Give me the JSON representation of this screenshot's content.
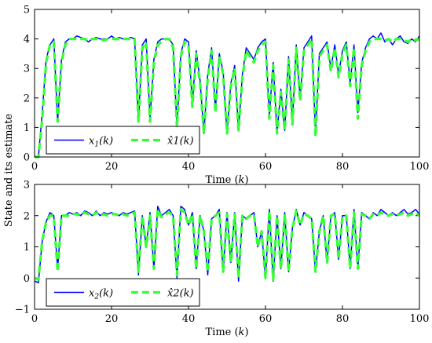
{
  "chart_data": {
    "type": "line",
    "ylabel": "State and its estimate",
    "colors": {
      "true": "#0000ff",
      "estimate": "#33ff33"
    },
    "panels": [
      {
        "xlabel_main": "Time (",
        "xlabel_var": "k",
        "xlabel_end": ")",
        "xlim": [
          0,
          100
        ],
        "ylim": [
          0,
          5
        ],
        "xticks": [
          "0",
          "20",
          "40",
          "60",
          "80",
          "100"
        ],
        "yticks": [
          "0",
          "1",
          "2",
          "3",
          "4",
          "5"
        ],
        "legend_position": "bottom-left",
        "legend": {
          "true": "x1(k)",
          "estimate": "x̂1(k)"
        },
        "series": [
          {
            "name": "x1(k)",
            "style": "solid",
            "values": [
              0,
              0,
              1.5,
              3.3,
              3.8,
              4.0,
              1.2,
              3.3,
              3.9,
              4.0,
              4.0,
              4.1,
              4.05,
              4.0,
              3.9,
              4.0,
              4.05,
              4.0,
              4.0,
              4.0,
              4.1,
              4.0,
              4.05,
              4.0,
              4.0,
              4.05,
              4.0,
              1.2,
              3.8,
              4.0,
              1.3,
              3.3,
              3.9,
              4.0,
              4.0,
              4.0,
              3.8,
              1.0,
              3.5,
              4.0,
              3.9,
              1.8,
              3.6,
              2.6,
              0.8,
              2.8,
              3.7,
              1.6,
              3.5,
              2.9,
              0.8,
              2.5,
              3.1,
              0.9,
              2.8,
              3.7,
              3.5,
              3.3,
              3.7,
              3.9,
              4.0,
              1.4,
              3.2,
              0.8,
              2.3,
              0.9,
              3.4,
              1.2,
              3.8,
              2.0,
              3.7,
              3.9,
              4.1,
              0.8,
              3.5,
              3.7,
              3.9,
              3.0,
              3.8,
              2.8,
              3.6,
              3.9,
              2.5,
              3.8,
              1.5,
              3.2,
              3.7,
              4.0,
              4.1,
              4.0,
              4.2,
              3.9,
              4.0,
              3.8,
              4.0,
              4.1,
              3.9,
              3.85,
              4.0,
              3.9,
              4.1
            ]
          },
          {
            "name": "x̂1(k)",
            "style": "dashed",
            "values": [
              0,
              0,
              1.3,
              3.2,
              3.8,
              3.9,
              1.2,
              3.2,
              3.8,
              4.0,
              4.0,
              4.0,
              4.0,
              4.0,
              3.95,
              4.0,
              4.0,
              4.0,
              3.95,
              4.0,
              4.0,
              4.0,
              4.0,
              4.0,
              4.0,
              4.0,
              4.0,
              1.2,
              3.7,
              3.9,
              1.2,
              3.2,
              3.8,
              3.9,
              4.0,
              4.0,
              3.7,
              1.0,
              3.4,
              3.9,
              3.8,
              1.7,
              3.5,
              2.5,
              0.8,
              2.7,
              3.6,
              1.5,
              3.4,
              2.8,
              0.8,
              2.4,
              3.0,
              0.9,
              2.7,
              3.6,
              3.4,
              3.2,
              3.6,
              3.8,
              3.9,
              1.3,
              3.1,
              0.8,
              2.2,
              0.9,
              3.3,
              1.1,
              3.7,
              1.9,
              3.6,
              3.8,
              4.0,
              0.7,
              3.4,
              3.6,
              3.8,
              2.9,
              3.7,
              2.7,
              3.5,
              3.8,
              2.4,
              3.7,
              1.3,
              3.1,
              3.6,
              3.9,
              4.0,
              4.0,
              4.0,
              3.95,
              4.0,
              3.9,
              4.0,
              4.0,
              3.95,
              3.9,
              4.0,
              3.95,
              4.0
            ]
          }
        ]
      },
      {
        "xlabel_main": "Time (",
        "xlabel_var": "k",
        "xlabel_end": ")",
        "xlim": [
          0,
          100
        ],
        "ylim": [
          -1,
          3
        ],
        "xticks": [
          "0",
          "20",
          "40",
          "60",
          "80",
          "100"
        ],
        "yticks": [
          "−1",
          "0",
          "1",
          "2",
          "3"
        ],
        "legend_position": "bottom-left",
        "legend": {
          "true": "x2(k)",
          "estimate": "x̂2(k)"
        },
        "series": [
          {
            "name": "x2(k)",
            "style": "solid",
            "values": [
              -0.1,
              -0.15,
              1.2,
              1.8,
              2.1,
              2.0,
              0.3,
              2.0,
              2.0,
              2.1,
              2.05,
              2.1,
              2.0,
              2.15,
              2.1,
              2.0,
              2.15,
              2.0,
              2.1,
              2.05,
              2.1,
              2.05,
              2.0,
              2.1,
              2.05,
              2.1,
              2.15,
              0.1,
              2.0,
              1.0,
              2.1,
              0.3,
              2.3,
              2.0,
              2.1,
              2.2,
              2.0,
              0.0,
              2.3,
              2.2,
              1.7,
              2.1,
              0.3,
              2.0,
              1.5,
              0.1,
              1.9,
              2.0,
              2.2,
              0.2,
              2.1,
              0.5,
              2.1,
              -0.1,
              2.0,
              1.9,
              2.0,
              2.1,
              1.0,
              1.5,
              0.0,
              2.2,
              -0.1,
              2.0,
              0.3,
              2.1,
              0.2,
              1.6,
              2.2,
              1.7,
              2.1,
              2.0,
              1.9,
              0.2,
              1.5,
              2.0,
              0.5,
              2.0,
              2.1,
              0.6,
              2.0,
              2.0,
              0.3,
              2.2,
              0.3,
              2.1,
              2.0,
              1.9,
              2.1,
              2.0,
              2.2,
              2.1,
              2.0,
              2.1,
              2.0,
              2.1,
              2.2,
              2.05,
              2.1,
              2.2,
              2.05
            ]
          },
          {
            "name": "x̂2(k)",
            "style": "dashed",
            "values": [
              0.0,
              -0.05,
              1.2,
              1.8,
              2.0,
              2.0,
              0.2,
              2.0,
              2.0,
              2.0,
              2.05,
              2.05,
              2.0,
              2.1,
              2.05,
              2.0,
              2.1,
              2.0,
              2.05,
              2.0,
              2.05,
              2.05,
              2.0,
              2.05,
              2.0,
              2.05,
              2.1,
              0.2,
              2.0,
              1.0,
              2.0,
              0.3,
              2.2,
              1.95,
              2.05,
              2.1,
              2.0,
              0.1,
              2.2,
              2.1,
              1.7,
              2.05,
              0.3,
              2.0,
              1.5,
              0.2,
              1.9,
              2.0,
              2.1,
              0.2,
              2.05,
              0.5,
              2.05,
              0.0,
              2.0,
              1.9,
              2.0,
              2.05,
              1.0,
              1.5,
              0.0,
              2.15,
              -0.05,
              2.0,
              0.3,
              2.05,
              0.2,
              1.6,
              2.15,
              1.7,
              2.05,
              2.0,
              1.9,
              0.2,
              1.5,
              2.0,
              0.5,
              2.0,
              2.05,
              0.6,
              2.0,
              2.0,
              0.3,
              2.1,
              0.3,
              2.05,
              2.0,
              1.9,
              2.05,
              2.0,
              2.1,
              2.05,
              2.0,
              2.05,
              2.0,
              2.05,
              2.1,
              2.0,
              2.05,
              2.1,
              2.0
            ]
          }
        ]
      }
    ]
  }
}
